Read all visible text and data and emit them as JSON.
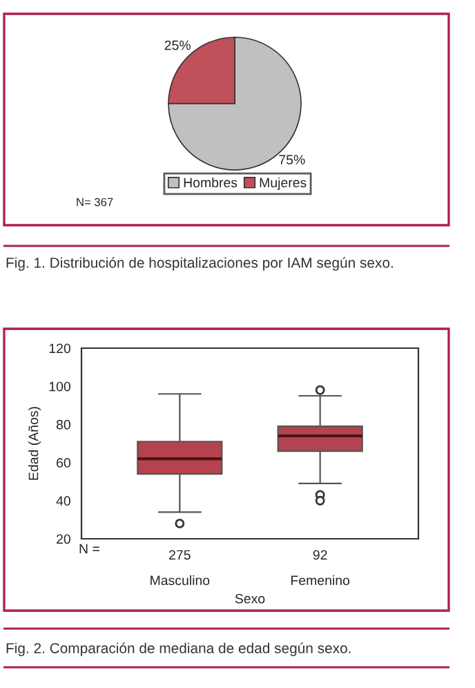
{
  "chart_data": [
    {
      "type": "pie",
      "categories": [
        "Hombres",
        "Mujeres"
      ],
      "values": [
        75,
        25
      ],
      "colors": [
        "#c0c0c0",
        "#c0505a"
      ],
      "value_labels": [
        "75%",
        "25%"
      ],
      "legend": "bottom",
      "annotations": [
        "N= 367",
        "Fig. 1. Distribución de hospitalizaciones por IAM según sexo."
      ]
    },
    {
      "type": "box",
      "categories": [
        "Masculino",
        "Femenino"
      ],
      "color": "#b5424f",
      "xlabel": "Sexo",
      "ylabel": "Edad (Años)",
      "ylim": [
        20,
        120
      ],
      "yticks": [
        20,
        40,
        60,
        80,
        100,
        120
      ],
      "grid": false,
      "boxes": [
        {
          "low": 34,
          "q1": 54,
          "median": 62,
          "q3": 71,
          "high": 96,
          "outliers": [
            28
          ]
        },
        {
          "low": 49,
          "q1": 66,
          "median": 74,
          "q3": 79,
          "high": 95,
          "outliers": [
            98,
            43,
            40
          ]
        }
      ],
      "annotations": [
        "N =",
        "275",
        "92",
        "Fig. 2. Comparación de mediana de edad según sexo."
      ]
    }
  ]
}
